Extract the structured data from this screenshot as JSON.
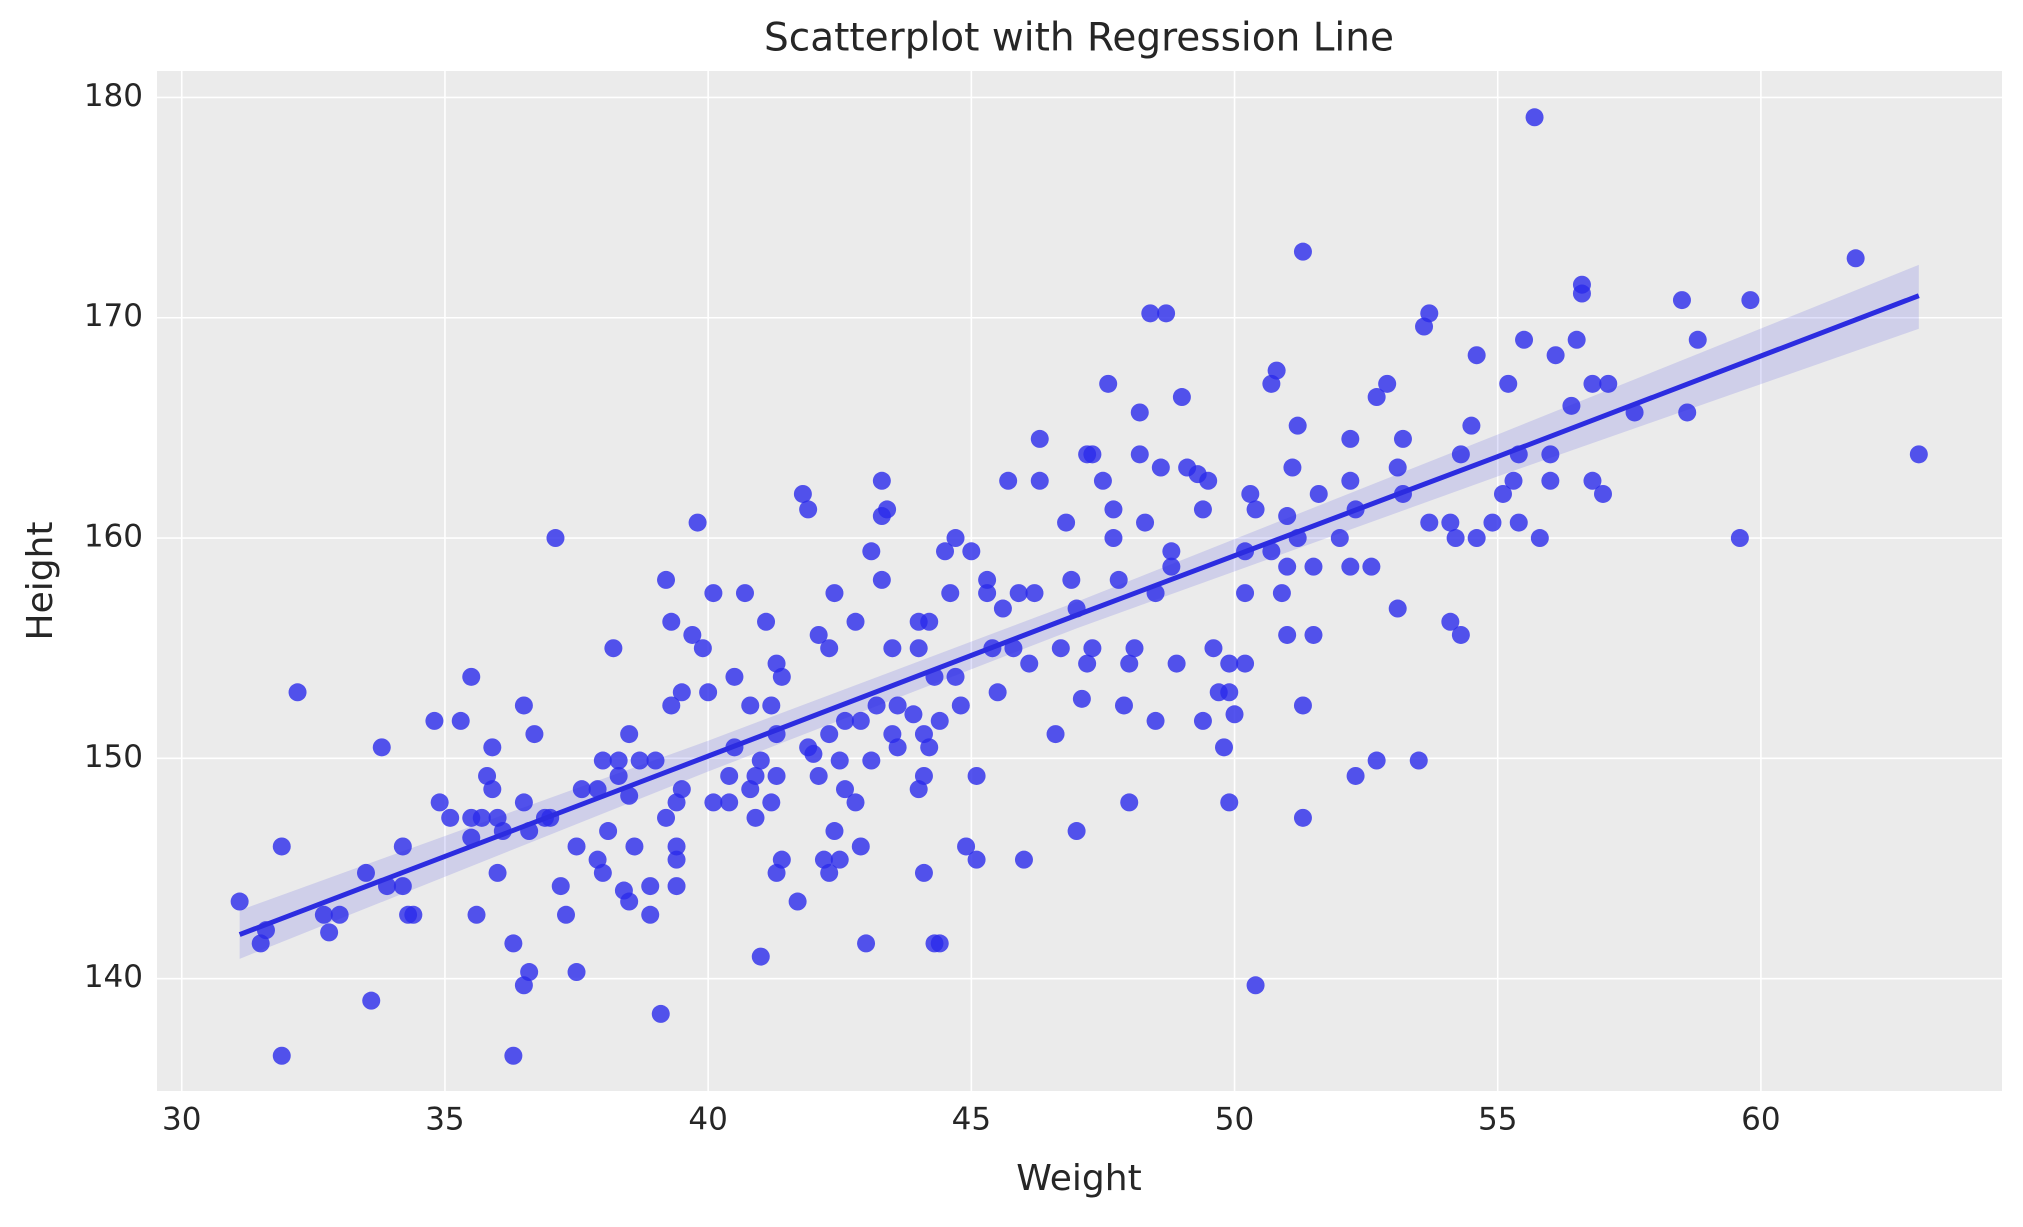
{
  "chart_data": {
    "type": "scatter",
    "title": "Scatterplot with Regression Line",
    "x_label": "Weight",
    "y_label": "Height",
    "xlim": [
      29.53,
      64.58
    ],
    "ylim": [
      134.9,
      181.2
    ],
    "xticks": [
      30,
      35,
      40,
      45,
      50,
      55,
      60
    ],
    "yticks": [
      140,
      150,
      160,
      170,
      180
    ],
    "grid": true,
    "series": [
      {
        "color": "#2a2aeb",
        "x": [
          31.1,
          31.5,
          31.6,
          31.9,
          31.9,
          32.2,
          32.7,
          32.8,
          33,
          33.5,
          33.6,
          33.8,
          33.9,
          34.2,
          34.2,
          34.3,
          34.4,
          34.8,
          34.9,
          35.1,
          35.3,
          35.5,
          35.5,
          35.5,
          35.6,
          35.7,
          35.8,
          35.9,
          35.9,
          36,
          36,
          36.1,
          36.3,
          36.3,
          36.5,
          36.5,
          36.5,
          36.6,
          36.6,
          36.7,
          36.9,
          37,
          37.1,
          37.2,
          37.3,
          37.5,
          37.5,
          37.6,
          37.9,
          37.9,
          38,
          38,
          38.1,
          38.2,
          38.3,
          38.3,
          38.4,
          38.5,
          38.5,
          38.5,
          38.6,
          38.7,
          38.9,
          38.9,
          39,
          39.1,
          39.2,
          39.2,
          39.3,
          39.3,
          39.4,
          39.4,
          39.4,
          39.4,
          39.5,
          39.5,
          39.7,
          39.8,
          39.9,
          40,
          40.1,
          40.1,
          40.4,
          40.4,
          40.5,
          40.5,
          40.7,
          40.8,
          40.8,
          40.9,
          40.9,
          41,
          41,
          41.1,
          41.2,
          41.2,
          41.3,
          41.3,
          41.3,
          41.3,
          41.4,
          41.4,
          41.7,
          41.8,
          41.9,
          41.9,
          42,
          42.1,
          42.1,
          42.2,
          42.3,
          42.3,
          42.3,
          42.4,
          42.4,
          42.5,
          42.5,
          42.6,
          42.6,
          42.8,
          42.8,
          42.9,
          42.9,
          43,
          43.1,
          43.1,
          43.2,
          43.3,
          43.3,
          43.3,
          43.4,
          43.5,
          43.5,
          43.6,
          43.6,
          43.9,
          44,
          44,
          44,
          44.1,
          44.1,
          44.1,
          44.2,
          44.2,
          44.3,
          44.3,
          44.4,
          44.4,
          44.5,
          44.6,
          44.7,
          44.7,
          44.8,
          44.9,
          45,
          45.1,
          45.1,
          45.3,
          45.3,
          45.4,
          45.5,
          45.6,
          45.7,
          45.8,
          45.9,
          46,
          46.1,
          46.2,
          46.3,
          46.3,
          46.6,
          46.7,
          46.8,
          46.9,
          47,
          47,
          47.1,
          47.2,
          47.2,
          47.3,
          47.3,
          47.5,
          47.6,
          47.7,
          47.7,
          47.8,
          47.9,
          48,
          48,
          48.1,
          48.2,
          48.2,
          48.3,
          48.4,
          48.5,
          48.5,
          48.6,
          48.7,
          48.8,
          48.8,
          48.9,
          49,
          49.1,
          49.3,
          49.4,
          49.5,
          49.6,
          49.7,
          49.4,
          49.8,
          49.9,
          49.9,
          49.9,
          50,
          50.2,
          50.2,
          50.2,
          50.3,
          50.4,
          50.4,
          50.7,
          50.8,
          50.7,
          50.9,
          51,
          51,
          51,
          51.1,
          51.2,
          51.2,
          51.3,
          51.3,
          51.3,
          51.5,
          51.5,
          51.6,
          52,
          52.2,
          52.2,
          52.2,
          52.3,
          52.3,
          52.6,
          52.7,
          52.7,
          52.9,
          53.1,
          53.1,
          53.2,
          53.2,
          53.5,
          53.6,
          53.7,
          53.7,
          54.1,
          54.1,
          54.2,
          54.3,
          54.3,
          54.5,
          54.6,
          54.6,
          54.9,
          55.1,
          55.2,
          55.3,
          55.4,
          55.4,
          55.5,
          55.7,
          55.8,
          56,
          56,
          56.1,
          56.4,
          56.5,
          56.6,
          56.6,
          56.8,
          56.8,
          57,
          57.1,
          57.6,
          58.5,
          58.6,
          58.8,
          59.6,
          59.8,
          61.8,
          63
        ],
        "values": [
          143.5,
          141.6,
          142.2,
          146,
          136.5,
          153,
          142.9,
          142.1,
          142.9,
          144.8,
          139,
          150.5,
          144.2,
          146,
          144.2,
          142.9,
          142.9,
          151.7,
          148,
          147.3,
          151.7,
          146.4,
          147.3,
          153.7,
          142.9,
          147.3,
          149.2,
          148.6,
          150.5,
          147.3,
          144.8,
          146.7,
          141.6,
          136.5,
          152.4,
          148,
          139.7,
          140.3,
          146.7,
          151.1,
          147.3,
          147.3,
          160,
          144.2,
          142.9,
          140.3,
          146,
          148.6,
          148.6,
          145.4,
          149.9,
          144.8,
          146.7,
          155,
          149.2,
          149.9,
          144,
          143.5,
          148.3,
          151.1,
          146,
          149.9,
          142.9,
          144.2,
          149.9,
          138.4,
          147.3,
          158.1,
          152.4,
          156.2,
          148,
          145.4,
          146,
          144.2,
          148.6,
          153,
          155.6,
          160.7,
          155,
          153,
          157.5,
          148,
          148,
          149.2,
          153.7,
          150.5,
          157.5,
          148.6,
          152.4,
          147.3,
          149.2,
          149.9,
          141,
          156.2,
          152.4,
          148,
          144.8,
          151.1,
          154.3,
          149.2,
          145.4,
          153.7,
          143.5,
          162,
          161.3,
          150.5,
          150.2,
          155.6,
          149.2,
          145.4,
          155,
          144.8,
          151.1,
          157.5,
          146.7,
          149.9,
          145.4,
          151.7,
          148.6,
          156.2,
          148,
          146,
          151.7,
          141.6,
          159.4,
          149.9,
          152.4,
          158.1,
          162.6,
          161,
          161.3,
          155,
          151.1,
          152.4,
          150.5,
          152,
          156.2,
          155,
          148.6,
          149.2,
          151.1,
          144.8,
          156.2,
          150.5,
          153.7,
          141.6,
          141.6,
          151.7,
          159.4,
          157.5,
          160,
          153.7,
          152.4,
          146,
          159.4,
          149.2,
          145.4,
          157.5,
          158.1,
          155,
          153,
          156.8,
          162.6,
          155,
          157.5,
          145.4,
          154.3,
          157.5,
          164.5,
          162.6,
          151.1,
          155,
          160.7,
          158.1,
          156.8,
          146.7,
          152.7,
          163.8,
          154.3,
          163.8,
          155,
          162.6,
          167,
          160,
          161.3,
          158.1,
          152.4,
          154.3,
          148,
          155,
          165.7,
          163.8,
          160.7,
          170.2,
          157.5,
          151.7,
          163.2,
          170.2,
          158.7,
          159.4,
          154.3,
          166.4,
          163.2,
          162.9,
          161.3,
          162.6,
          155,
          153,
          151.7,
          150.5,
          153,
          148,
          154.3,
          152,
          159.4,
          157.5,
          154.3,
          162,
          161.3,
          139.7,
          167,
          167.6,
          159.4,
          157.5,
          155.6,
          158.7,
          161,
          163.2,
          165.1,
          160,
          152.4,
          147.3,
          173,
          158.7,
          155.6,
          162,
          160,
          164.5,
          162.6,
          158.7,
          161.3,
          149.2,
          158.7,
          166.4,
          149.9,
          167,
          163.2,
          156.8,
          164.5,
          162,
          149.9,
          169.6,
          170.2,
          160.7,
          160.7,
          156.2,
          160,
          163.8,
          155.6,
          165.1,
          168.3,
          160,
          160.7,
          162,
          167,
          162.6,
          163.8,
          160.7,
          169,
          179.1,
          160,
          163.8,
          162.6,
          168.3,
          166,
          169,
          171.1,
          171.5,
          167,
          162.6,
          162,
          167,
          165.7,
          170.8,
          165.7,
          169,
          160,
          170.8,
          172.7,
          163.8
        ]
      }
    ],
    "regression": {
      "color": "#2c2ce0",
      "x": [
        31.1,
        40,
        47,
        55,
        63
      ],
      "values": [
        142,
        150.1,
        156.5,
        163.7,
        171
      ],
      "lower": [
        140.9,
        149.4,
        155.9,
        162.8,
        169.5
      ],
      "upper": [
        143.1,
        150.8,
        157.1,
        164.7,
        172.4
      ]
    }
  }
}
